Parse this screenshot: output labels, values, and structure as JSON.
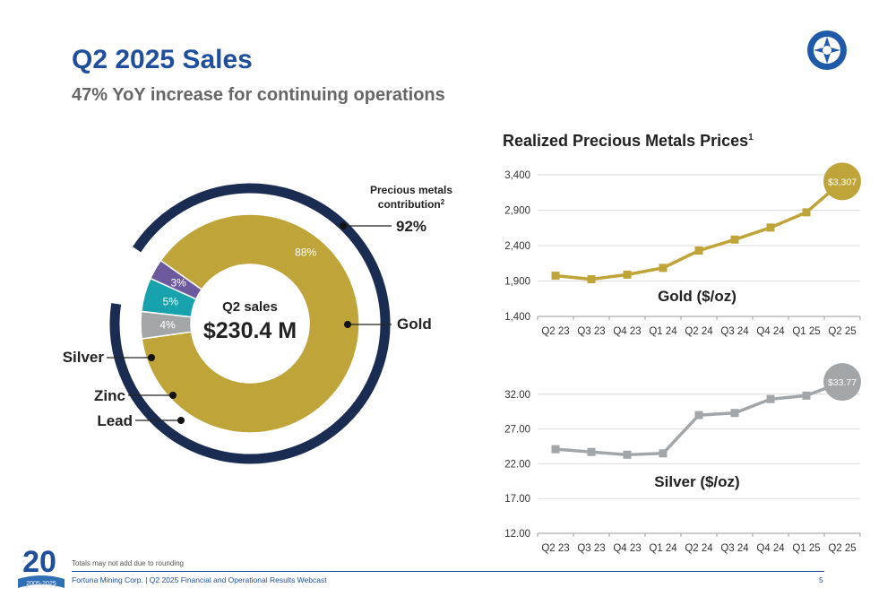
{
  "header": {
    "title": "Q2 2025 Sales",
    "subtitle": "47% YoY increase for continuing operations"
  },
  "logo": {
    "icon": "fortuna-logo-icon"
  },
  "donut": {
    "center_label": "Q2 sales",
    "center_value": "$230.4 M",
    "precious_label_line1": "Precious metals",
    "precious_label_line2": "contribution",
    "precious_label_sup": "2",
    "precious_value": "92%",
    "labels": {
      "gold": "Gold",
      "silver": "Silver",
      "zinc": "Zinc",
      "lead": "Lead"
    }
  },
  "prices": {
    "title": "Realized Precious Metals Prices",
    "title_sup": "1"
  },
  "chart_data": [
    {
      "type": "pie",
      "title": "",
      "categories": [
        "Gold",
        "Silver",
        "Zinc",
        "Lead"
      ],
      "values": [
        88,
        4,
        5,
        3
      ],
      "labels": [
        "88%",
        "4%",
        "5%",
        "3%"
      ],
      "colors": [
        "#bfa43a",
        "#a3a6a8",
        "#17a2ae",
        "#6d5a9e"
      ],
      "ring_color": "#1b2c52",
      "annotation": {
        "text": "92%",
        "label": "Precious metals contribution"
      }
    },
    {
      "type": "line",
      "title": "Gold ($/oz)",
      "categories": [
        "Q2 23",
        "Q3 23",
        "Q4 23",
        "Q1 24",
        "Q2 24",
        "Q3 24",
        "Q4 24",
        "Q1 25",
        "Q2 25"
      ],
      "values": [
        1975,
        1925,
        1990,
        2085,
        2330,
        2485,
        2655,
        2870,
        3307
      ],
      "end_label": "$3,307",
      "yticks": [
        "1,400",
        "1,900",
        "2,400",
        "2,900",
        "3,400"
      ],
      "ylim": [
        1400,
        3400
      ],
      "color": "#bfa43a"
    },
    {
      "type": "line",
      "title": "Silver ($/oz)",
      "categories": [
        "Q2 23",
        "Q3 23",
        "Q4 23",
        "Q1 24",
        "Q2 24",
        "Q3 24",
        "Q4 24",
        "Q1 25",
        "Q2 25"
      ],
      "values": [
        24.1,
        23.7,
        23.3,
        23.5,
        29.0,
        29.3,
        31.3,
        31.8,
        33.77
      ],
      "end_label": "$33.77",
      "yticks": [
        "12.00",
        "17.00",
        "22.00",
        "27.00",
        "32.00"
      ],
      "ylim": [
        12,
        37
      ],
      "color": "#a3a6a8"
    }
  ],
  "footer": {
    "note": "Totals may not add due to rounding",
    "text": "Fortuna Mining Corp. | Q2 2025 Financial and Operational Results Webcast",
    "page": "5",
    "anniversary": "20",
    "anniversary_years": "2005-2025"
  }
}
